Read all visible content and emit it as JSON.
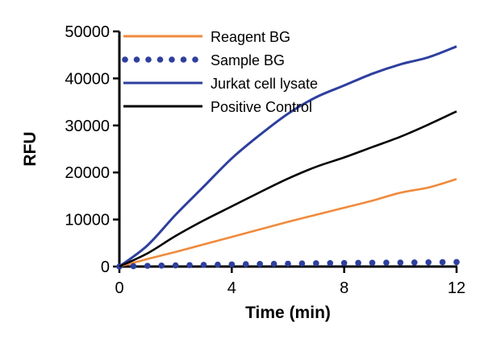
{
  "chart_data": {
    "type": "line",
    "xlabel": "Time (min)",
    "ylabel": "RFU",
    "xlim": [
      0,
      12
    ],
    "ylim": [
      0,
      50000
    ],
    "xticks": [
      0,
      4,
      8,
      12
    ],
    "yticks": [
      0,
      10000,
      20000,
      30000,
      40000,
      50000
    ],
    "grid": false,
    "legend": "top-left",
    "x": [
      0,
      1,
      2,
      3,
      4,
      5,
      6,
      7,
      8,
      9,
      10,
      11,
      12
    ],
    "series": [
      {
        "name": "Reagent BG",
        "color": "#f08a3c",
        "style": "solid",
        "values": [
          0,
          1600,
          3100,
          4700,
          6300,
          7900,
          9500,
          11000,
          12500,
          14000,
          15700,
          16800,
          18600
        ]
      },
      {
        "name": "Sample BG",
        "color": "#2e3f9e",
        "style": "dotted",
        "values": [
          0,
          150,
          250,
          350,
          450,
          550,
          600,
          700,
          750,
          800,
          850,
          900,
          950
        ]
      },
      {
        "name": "Jurkat cell lysate",
        "color": "#2e3f9e",
        "style": "solid",
        "values": [
          0,
          4500,
          11000,
          17000,
          23000,
          28000,
          32500,
          36000,
          38500,
          41000,
          43000,
          44500,
          46800
        ]
      },
      {
        "name": "Positive Control",
        "color": "#000000",
        "style": "solid",
        "values": [
          0,
          2800,
          6500,
          9800,
          12800,
          15800,
          18700,
          21200,
          23200,
          25400,
          27600,
          30200,
          33000
        ]
      }
    ]
  }
}
